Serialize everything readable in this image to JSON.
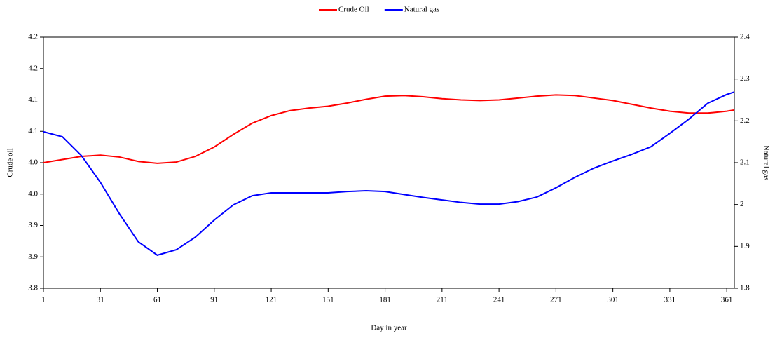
{
  "chart_data": {
    "type": "line",
    "x_label": "Day in year",
    "y_label": "Crude oil",
    "y2_label": "Natural gas",
    "x": [
      1,
      11,
      21,
      31,
      41,
      51,
      61,
      71,
      81,
      91,
      101,
      111,
      121,
      131,
      141,
      151,
      161,
      171,
      181,
      191,
      201,
      211,
      221,
      231,
      241,
      251,
      261,
      271,
      281,
      291,
      301,
      311,
      321,
      331,
      341,
      351,
      361,
      365
    ],
    "series": [
      {
        "name": "Crude Oil",
        "color": "#ff0000",
        "axis": "y",
        "values": [
          4.0,
          4.005,
          4.01,
          4.012,
          4.009,
          4.002,
          3.999,
          4.001,
          4.01,
          4.025,
          4.045,
          4.063,
          4.075,
          4.083,
          4.087,
          4.09,
          4.095,
          4.101,
          4.106,
          4.107,
          4.105,
          4.102,
          4.1,
          4.099,
          4.1,
          4.103,
          4.106,
          4.108,
          4.107,
          4.103,
          4.099,
          4.093,
          4.087,
          4.082,
          4.079,
          4.079,
          4.082,
          4.084
        ]
      },
      {
        "name": "Natural gas",
        "color": "#0000ff",
        "axis": "y2",
        "values": [
          2.174,
          2.162,
          2.117,
          2.053,
          1.978,
          1.911,
          1.879,
          1.892,
          1.922,
          1.963,
          1.999,
          2.021,
          2.028,
          2.028,
          2.028,
          2.028,
          2.031,
          2.033,
          2.031,
          2.024,
          2.017,
          2.011,
          2.005,
          2.001,
          2.001,
          2.007,
          2.018,
          2.04,
          2.065,
          2.087,
          2.104,
          2.12,
          2.138,
          2.17,
          2.204,
          2.242,
          2.263,
          2.269
        ]
      }
    ],
    "xlim": [
      1,
      365
    ],
    "xticks": [
      1,
      31,
      61,
      91,
      121,
      151,
      181,
      211,
      241,
      271,
      301,
      331,
      361
    ],
    "ylim": [
      3.8,
      4.2
    ],
    "yticks": [
      3.8,
      {
        "value": 3.85,
        "label": "3.9"
      },
      3.9,
      {
        "value": 3.95,
        "label": "4.0"
      },
      {
        "value": 4.0,
        "label": "4.0"
      },
      {
        "value": 4.05,
        "label": "4.1"
      },
      {
        "value": 4.1,
        "label": "4.1"
      },
      {
        "value": 4.15,
        "label": "4.2"
      },
      {
        "value": 4.2,
        "label": "4.2"
      }
    ],
    "y2lim": [
      1.8,
      2.4
    ],
    "y2ticks": [
      1.8,
      1.9,
      2.0,
      2.1,
      2.2,
      2.3,
      2.4
    ],
    "legend": "top"
  }
}
